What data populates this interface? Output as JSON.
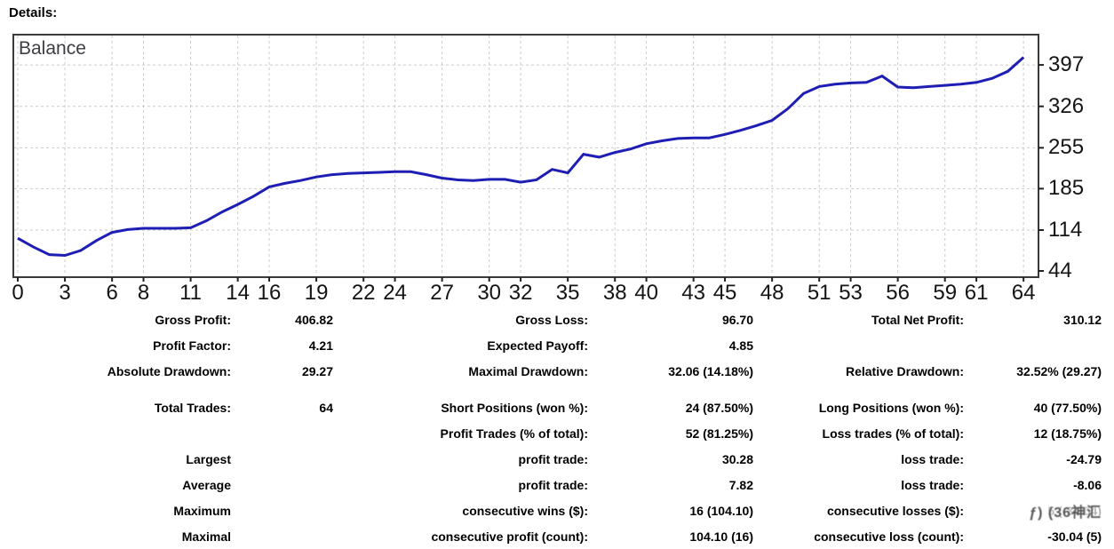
{
  "page": {
    "title": "Details:"
  },
  "chart_data": {
    "type": "line",
    "series_label": "Balance",
    "title": "",
    "xlabel": "",
    "ylabel": "",
    "x": [
      0,
      1,
      2,
      3,
      4,
      5,
      6,
      7,
      8,
      9,
      10,
      11,
      12,
      13,
      14,
      15,
      16,
      17,
      18,
      19,
      20,
      21,
      22,
      23,
      24,
      25,
      26,
      27,
      28,
      29,
      30,
      31,
      32,
      33,
      34,
      35,
      36,
      37,
      38,
      39,
      40,
      41,
      42,
      43,
      44,
      45,
      46,
      47,
      48,
      49,
      50,
      51,
      52,
      53,
      54,
      55,
      56,
      57,
      58,
      59,
      60,
      61,
      62,
      63,
      64
    ],
    "balances": [
      100,
      85,
      72,
      70.7,
      79,
      96,
      110,
      115,
      117,
      117,
      117,
      118,
      130,
      145,
      158,
      172,
      188,
      194,
      199,
      205,
      209,
      211,
      212,
      213,
      214,
      214,
      209,
      203,
      200,
      199,
      201,
      201,
      196,
      200,
      218,
      212,
      244,
      239,
      247,
      253,
      262,
      267,
      271,
      272,
      272,
      278,
      285,
      293,
      302,
      322,
      348,
      360,
      364,
      366,
      367,
      378,
      359,
      358,
      360,
      362,
      364,
      367,
      374,
      386,
      410.1
    ],
    "x_ticks": [
      0,
      3,
      6,
      8,
      11,
      14,
      16,
      19,
      22,
      24,
      27,
      30,
      32,
      35,
      38,
      40,
      43,
      45,
      48,
      51,
      53,
      56,
      59,
      61,
      64
    ],
    "y_ticks": [
      44,
      114,
      185,
      255,
      326,
      397
    ],
    "ylim": [
      44,
      420
    ],
    "grid": true,
    "legend_position": "top-left",
    "line_color": "#1e1eb4",
    "grid_color": "#cbcbcb",
    "border_color": "#3a3a3a"
  },
  "stats": {
    "rows": [
      [
        "Gross Profit:",
        "406.82",
        "Gross Loss:",
        "96.70",
        "Total Net Profit:",
        "310.12"
      ],
      [
        "Profit Factor:",
        "4.21",
        "Expected Payoff:",
        "4.85",
        "",
        ""
      ],
      [
        "Absolute Drawdown:",
        "29.27",
        "Maximal Drawdown:",
        "32.06 (14.18%)",
        "Relative Drawdown:",
        "32.52% (29.27)"
      ],
      [
        "Total Trades:",
        "64",
        "Short Positions (won %):",
        "24 (87.50%)",
        "Long Positions (won %):",
        "40 (77.50%)"
      ],
      [
        "",
        "",
        "Profit Trades (% of total):",
        "52 (81.25%)",
        "Loss trades (% of total):",
        "12 (18.75%)"
      ],
      [
        "Largest",
        "",
        "profit trade:",
        "30.28",
        "loss trade:",
        "-24.79"
      ],
      [
        "Average",
        "",
        "profit trade:",
        "7.82",
        "loss trade:",
        "-8.06"
      ],
      [
        "Maximum",
        "",
        "consecutive wins ($):",
        "16 (104.10)",
        "consecutive losses ($):",
        "5 (-30.04)"
      ],
      [
        "Maximal",
        "",
        "consecutive profit (count):",
        "104.10 (16)",
        "consecutive loss (count):",
        "-30.04 (5)"
      ]
    ],
    "group_gap_before_row": 3
  },
  "watermark": {
    "row": 7,
    "col": 5,
    "glyphs": "ƒ) (36神汇"
  }
}
